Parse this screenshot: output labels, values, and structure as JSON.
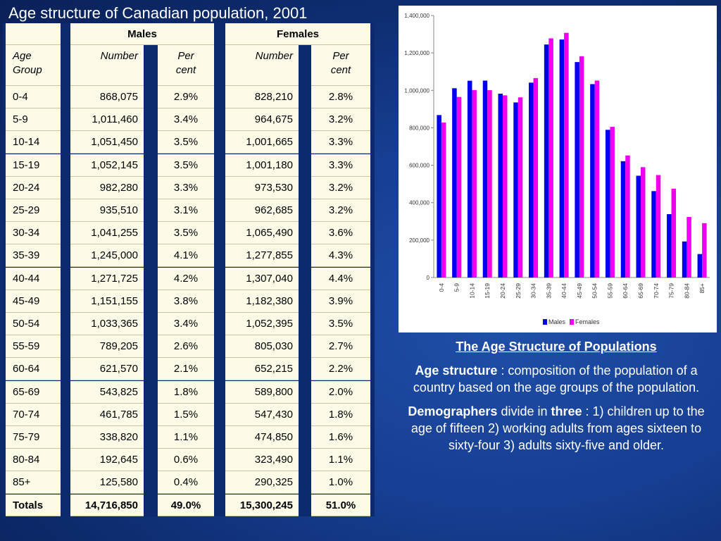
{
  "title": "Age structure of Canadian population, 2001",
  "table": {
    "group_headers": [
      "Males",
      "Females"
    ],
    "subheaders": {
      "age_group_line1": "Age",
      "age_group_line2": "Group",
      "number": "Number",
      "percent_line1": "Per",
      "percent_line2": "cent"
    },
    "rows": [
      [
        "0-4",
        "868,075",
        "2.9%",
        "828,210",
        "2.8%"
      ],
      [
        "5-9",
        "1,011,460",
        "3.4%",
        "964,675",
        "3.2%"
      ],
      [
        "10-14",
        "1,051,450",
        "3.5%",
        "1,001,665",
        "3.3%"
      ],
      [
        "15-19",
        "1,052,145",
        "3.5%",
        "1,001,180",
        "3.3%"
      ],
      [
        "20-24",
        "982,280",
        "3.3%",
        "973,530",
        "3.2%"
      ],
      [
        "25-29",
        "935,510",
        "3.1%",
        "962,685",
        "3.2%"
      ],
      [
        "30-34",
        "1,041,255",
        "3.5%",
        "1,065,490",
        "3.6%"
      ],
      [
        "35-39",
        "1,245,000",
        "4.1%",
        "1,277,855",
        "4.3%"
      ],
      [
        "40-44",
        "1,271,725",
        "4.2%",
        "1,307,040",
        "4.4%"
      ],
      [
        "45-49",
        "1,151,155",
        "3.8%",
        "1,182,380",
        "3.9%"
      ],
      [
        "50-54",
        "1,033,365",
        "3.4%",
        "1,052,395",
        "3.5%"
      ],
      [
        "55-59",
        "789,205",
        "2.6%",
        "805,030",
        "2.7%"
      ],
      [
        "60-64",
        "621,570",
        "2.1%",
        "652,215",
        "2.2%"
      ],
      [
        "65-69",
        "543,825",
        "1.8%",
        "589,800",
        "2.0%"
      ],
      [
        "70-74",
        "461,785",
        "1.5%",
        "547,430",
        "1.8%"
      ],
      [
        "75-79",
        "338,820",
        "1.1%",
        "474,850",
        "1.6%"
      ],
      [
        "80-84",
        "192,645",
        "0.6%",
        "323,490",
        "1.1%"
      ],
      [
        "85+",
        "125,580",
        "0.4%",
        "290,325",
        "1.0%"
      ]
    ],
    "totals": [
      "Totals",
      "14,716,850",
      "49.0%",
      "15,300,245",
      "51.0%"
    ]
  },
  "chart_data": {
    "type": "bar",
    "categories": [
      "0-4",
      "5-9",
      "10-14",
      "15-19",
      "20-24",
      "25-29",
      "30-34",
      "35-39",
      "40-44",
      "45-49",
      "50-54",
      "55-59",
      "60-64",
      "65-69",
      "70-74",
      "75-79",
      "80-84",
      "85+"
    ],
    "series": [
      {
        "name": "Males",
        "color": "#0000ee",
        "values": [
          868075,
          1011460,
          1051450,
          1052145,
          982280,
          935510,
          1041255,
          1245000,
          1271725,
          1151155,
          1033365,
          789205,
          621570,
          543825,
          461785,
          338820,
          192645,
          125580
        ]
      },
      {
        "name": "Females",
        "color": "#ee00ee",
        "values": [
          828210,
          964675,
          1001665,
          1001180,
          973530,
          962685,
          1065490,
          1277855,
          1307040,
          1182380,
          1052395,
          805030,
          652215,
          589800,
          547430,
          474850,
          323490,
          290325
        ]
      }
    ],
    "ylim": [
      0,
      1400000
    ],
    "yticks": [
      "0",
      "200,000",
      "400,000",
      "600,000",
      "800,000",
      "1,000,000",
      "1,200,000",
      "1,400,000"
    ],
    "legend_position": "bottom"
  },
  "notes": {
    "heading": "The Age Structure of Populations",
    "p1_bold": "Age structure",
    "p1_rest": " : composition of the population of a country based on the age groups of the population.",
    "p2_bold1": "Demographers",
    "p2_mid": " divide in ",
    "p2_bold2": "three",
    "p2_rest": " : 1) children up to the age of fifteen 2) working adults from ages sixteen to sixty-four 3) adults sixty-five and older."
  }
}
